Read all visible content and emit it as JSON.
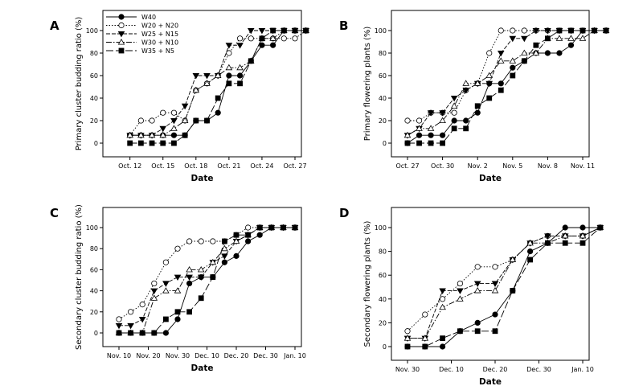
{
  "chart_data": [
    {
      "panel": "A",
      "type": "line",
      "xlabel": "Date",
      "ylabel": "Primary cluster budding ratio (%)",
      "xlim": [
        0,
        16
      ],
      "ylim": [
        0,
        100
      ],
      "x_ticks": [
        {
          "x": 1,
          "label": "Oct. 12"
        },
        {
          "x": 4,
          "label": "Oct. 15"
        },
        {
          "x": 7,
          "label": "Oct. 18"
        },
        {
          "x": 10,
          "label": "Oct. 21"
        },
        {
          "x": 13,
          "label": "Oct. 24"
        },
        {
          "x": 16,
          "label": "Oct. 27"
        }
      ],
      "y_ticks": [
        0,
        20,
        40,
        60,
        80,
        100
      ],
      "x": [
        1,
        2,
        3,
        4,
        5,
        6,
        7,
        8,
        9,
        10,
        11,
        12,
        13,
        14,
        15,
        16,
        17
      ],
      "series": [
        {
          "name": "W40",
          "values": [
            7,
            7,
            7,
            7,
            7,
            7,
            20,
            20,
            27,
            60,
            60,
            73,
            87,
            87,
            100,
            100,
            100
          ]
        },
        {
          "name": "W20 + N20",
          "values": [
            7,
            20,
            20,
            27,
            27,
            20,
            47,
            53,
            60,
            80,
            93,
            93,
            93,
            93,
            93,
            93,
            100
          ]
        },
        {
          "name": "W25 + N15",
          "values": [
            7,
            7,
            7,
            13,
            20,
            33,
            60,
            60,
            60,
            87,
            87,
            100,
            100,
            100,
            100,
            100,
            100
          ]
        },
        {
          "name": "W30 + N10",
          "values": [
            7,
            7,
            7,
            7,
            13,
            20,
            47,
            53,
            60,
            67,
            67,
            73,
            93,
            93,
            100,
            100,
            100
          ]
        },
        {
          "name": "W35 + N5",
          "values": [
            0,
            0,
            0,
            0,
            0,
            7,
            20,
            20,
            40,
            53,
            53,
            73,
            93,
            100,
            100,
            100,
            100
          ]
        }
      ]
    },
    {
      "panel": "B",
      "type": "line",
      "xlabel": "Date",
      "ylabel": "Primary flowering plants (%)",
      "xlim": [
        0,
        15
      ],
      "ylim": [
        0,
        100
      ],
      "x_ticks": [
        {
          "x": 0,
          "label": "Oct. 27"
        },
        {
          "x": 3,
          "label": "Oct. 30"
        },
        {
          "x": 6,
          "label": "Nov. 2"
        },
        {
          "x": 9,
          "label": "Nov. 5"
        },
        {
          "x": 12,
          "label": "Nov. 8"
        },
        {
          "x": 15,
          "label": "Nov. 11"
        }
      ],
      "y_ticks": [
        0,
        20,
        40,
        60,
        80,
        100
      ],
      "x": [
        0,
        1,
        2,
        3,
        4,
        5,
        6,
        7,
        8,
        9,
        10,
        11,
        12,
        13,
        14,
        15,
        16,
        17
      ],
      "series": [
        {
          "name": "W40",
          "values": [
            0,
            7,
            7,
            7,
            20,
            20,
            27,
            53,
            53,
            67,
            73,
            80,
            80,
            80,
            87,
            100,
            100,
            100
          ]
        },
        {
          "name": "W20 + N20",
          "values": [
            20,
            20,
            27,
            27,
            27,
            47,
            53,
            80,
            100,
            100,
            100,
            100,
            100,
            100,
            100,
            100,
            100,
            100
          ]
        },
        {
          "name": "W25 + N15",
          "values": [
            7,
            13,
            27,
            27,
            40,
            47,
            53,
            53,
            80,
            93,
            93,
            100,
            100,
            100,
            100,
            100,
            100,
            100
          ]
        },
        {
          "name": "W30 + N10",
          "values": [
            7,
            13,
            13,
            20,
            33,
            53,
            53,
            60,
            73,
            73,
            80,
            80,
            93,
            93,
            93,
            93,
            100,
            100
          ]
        },
        {
          "name": "W35 + N5",
          "values": [
            0,
            0,
            0,
            0,
            13,
            13,
            33,
            40,
            47,
            60,
            73,
            87,
            93,
            100,
            100,
            100,
            100,
            100
          ]
        }
      ]
    },
    {
      "panel": "C",
      "type": "line",
      "xlabel": "Date",
      "ylabel": "Secondary cluster budding ratio (%)",
      "xlim": [
        0,
        60
      ],
      "ylim": [
        0,
        100
      ],
      "x_ticks": [
        {
          "x": 0,
          "label": "Nov. 10"
        },
        {
          "x": 10,
          "label": "Nov. 20"
        },
        {
          "x": 20,
          "label": "Nov. 30"
        },
        {
          "x": 30,
          "label": "Dec. 10"
        },
        {
          "x": 40,
          "label": "Dec. 20"
        },
        {
          "x": 50,
          "label": "Dec. 30"
        },
        {
          "x": 60,
          "label": "Jan. 10"
        }
      ],
      "y_ticks": [
        0,
        20,
        40,
        60,
        80,
        100
      ],
      "x": [
        0,
        4,
        8,
        12,
        16,
        20,
        24,
        28,
        32,
        36,
        40,
        44,
        48,
        52,
        56,
        60
      ],
      "series": [
        {
          "name": "W40",
          "values": [
            0,
            0,
            0,
            0,
            0,
            13,
            47,
            53,
            53,
            67,
            73,
            87,
            93,
            100,
            100,
            100
          ]
        },
        {
          "name": "W20 + N20",
          "values": [
            13,
            20,
            27,
            47,
            67,
            80,
            87,
            87,
            87,
            87,
            93,
            100,
            100,
            100,
            100,
            100
          ]
        },
        {
          "name": "W25 + N15",
          "values": [
            7,
            7,
            13,
            40,
            47,
            53,
            53,
            53,
            67,
            73,
            87,
            93,
            100,
            100,
            100,
            100
          ]
        },
        {
          "name": "W30 + N10",
          "values": [
            0,
            0,
            0,
            33,
            40,
            40,
            60,
            60,
            67,
            80,
            87,
            93,
            100,
            100,
            100,
            100
          ]
        },
        {
          "name": "W35 + N5",
          "values": [
            0,
            0,
            0,
            0,
            13,
            20,
            20,
            33,
            53,
            87,
            93,
            93,
            100,
            100,
            100,
            100
          ]
        }
      ]
    },
    {
      "panel": "D",
      "type": "line",
      "xlabel": "Date",
      "ylabel": "Secondary flowering plants (%)",
      "xlim": [
        0,
        40
      ],
      "ylim": [
        0,
        100
      ],
      "x_ticks": [
        {
          "x": 0,
          "label": "Nov. 30"
        },
        {
          "x": 10,
          "label": "Dec. 10"
        },
        {
          "x": 20,
          "label": "Dec. 20"
        },
        {
          "x": 30,
          "label": "Dec. 30"
        },
        {
          "x": 40,
          "label": "Jan. 10"
        }
      ],
      "y_ticks": [
        0,
        20,
        40,
        60,
        80,
        100
      ],
      "x": [
        0,
        4,
        8,
        12,
        16,
        20,
        24,
        28,
        32,
        36,
        40,
        44
      ],
      "series": [
        {
          "name": "W40",
          "values": [
            0,
            0,
            0,
            13,
            20,
            27,
            47,
            80,
            87,
            100,
            100,
            100
          ]
        },
        {
          "name": "W20 + N20",
          "values": [
            13,
            27,
            40,
            53,
            67,
            67,
            73,
            87,
            93,
            93,
            93,
            100
          ]
        },
        {
          "name": "W25 + N15",
          "values": [
            7,
            7,
            47,
            47,
            53,
            53,
            73,
            87,
            93,
            93,
            93,
            100
          ]
        },
        {
          "name": "W30 + N10",
          "values": [
            7,
            7,
            33,
            40,
            47,
            47,
            73,
            87,
            87,
            93,
            93,
            100
          ]
        },
        {
          "name": "W35 + N5",
          "values": [
            0,
            0,
            7,
            13,
            13,
            13,
            47,
            73,
            87,
            87,
            87,
            100
          ]
        }
      ]
    }
  ],
  "legend": {
    "location": "panel A top-left",
    "entries": [
      "W40",
      "W20 + N20",
      "W25 + N15",
      "W30 + N10",
      "W35 + N5"
    ]
  }
}
